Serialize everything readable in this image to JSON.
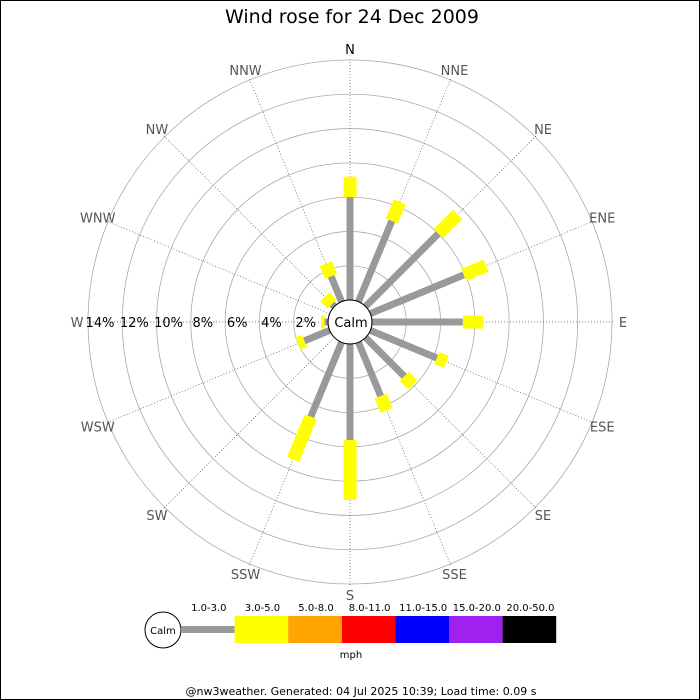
{
  "chart_data": {
    "type": "wind-rose",
    "title": "Wind rose for 24 Dec 2009",
    "directions": [
      "N",
      "NNE",
      "NE",
      "ENE",
      "E",
      "ESE",
      "SE",
      "SSE",
      "S",
      "SSW",
      "SW",
      "WSW",
      "W",
      "WNW",
      "NW",
      "NNW"
    ],
    "ring_labels": [
      "2%",
      "4%",
      "6%",
      "8%",
      "10%",
      "12%",
      "14%"
    ],
    "rmax_percent": 14,
    "center_label": "Calm",
    "speed_bins": [
      {
        "label": "1.0-3.0",
        "color": "#999999"
      },
      {
        "label": "3.0-5.0",
        "color": "#ffff00"
      },
      {
        "label": "5.0-8.0",
        "color": "#ffa500"
      },
      {
        "label": "8.0-11.0",
        "color": "#ff0000"
      },
      {
        "label": "11.0-15.0",
        "color": "#0000ff"
      },
      {
        "label": "15.0-20.0",
        "color": "#a020f0"
      },
      {
        "label": "20.0-50.0",
        "color": "#000000"
      }
    ],
    "series": [
      {
        "values": [
          6.0,
          5.1,
          6.0,
          5.9,
          5.3,
          4.2,
          3.2,
          3.4,
          5.6,
          4.7,
          0.0,
          1.6,
          0.2,
          0.0,
          0.2,
          1.6
        ]
      },
      {
        "values": [
          1.2,
          1.2,
          1.6,
          1.4,
          1.2,
          0.6,
          0.7,
          0.9,
          3.5,
          2.7,
          0.0,
          0.4,
          0.2,
          0.0,
          0.6,
          0.8
        ]
      }
    ],
    "legend_unit": "mph",
    "legend_calm": "Calm"
  },
  "footer": "@nw3weather. Generated: 04 Jul 2025 10:39; Load time: 0.09 s"
}
